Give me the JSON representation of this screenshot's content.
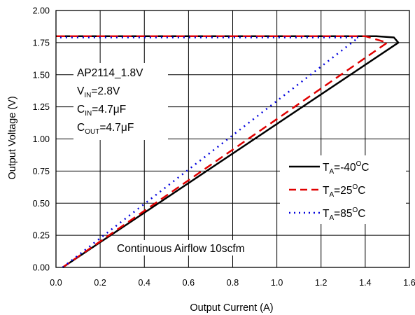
{
  "chart_data": {
    "type": "line",
    "xlabel": "Output Current (A)",
    "ylabel": "Output Voltage (V)",
    "xlim": [
      0,
      1.6
    ],
    "ylim": [
      0,
      2.0
    ],
    "x_ticks": [
      "0.0",
      "0.2",
      "0.4",
      "0.6",
      "0.8",
      "1.0",
      "1.2",
      "1.4",
      "1.6"
    ],
    "y_ticks": [
      "0.00",
      "0.25",
      "0.50",
      "0.75",
      "1.00",
      "1.25",
      "1.50",
      "1.75",
      "2.00"
    ],
    "x_tick_values": [
      0,
      0.2,
      0.4,
      0.6,
      0.8,
      1.0,
      1.2,
      1.4,
      1.6
    ],
    "y_tick_values": [
      0,
      0.25,
      0.5,
      0.75,
      1.0,
      1.25,
      1.5,
      1.75,
      2.0
    ],
    "grid": true,
    "annotations": {
      "device": "AP2114_1.8V",
      "vin": {
        "main": "V",
        "sub": "IN",
        "value": "=2.8V"
      },
      "cin": {
        "main": "C",
        "sub": "IN",
        "value": "=4.7μF"
      },
      "cout": {
        "main": "C",
        "sub": "OUT",
        "value": "=4.7μF"
      },
      "airflow": "Continuous Airflow 10scfm"
    },
    "legend_position": "right",
    "series": [
      {
        "name": "TA=-40OC",
        "label_main": "T",
        "label_sub": "A",
        "label_value": "=-40",
        "label_sup": "O",
        "label_unit": "C",
        "color": "#000000",
        "style": "solid",
        "x": [
          0.03,
          1.55,
          1.53,
          1.45,
          0.0
        ],
        "y": [
          0.0,
          1.75,
          1.79,
          1.8,
          1.8
        ]
      },
      {
        "name": "TA=25OC",
        "label_main": "T",
        "label_sub": "A",
        "label_value": "=25",
        "label_sup": "O",
        "label_unit": "C",
        "color": "#e00000",
        "style": "dashed",
        "x": [
          0.03,
          1.5,
          1.4,
          0.0
        ],
        "y": [
          0.0,
          1.75,
          1.8,
          1.8
        ]
      },
      {
        "name": "TA=85OC",
        "label_main": "T",
        "label_sub": "A",
        "label_value": "=85",
        "label_sup": "O",
        "label_unit": "C",
        "color": "#0000dd",
        "style": "dotted",
        "x": [
          0.03,
          1.37,
          0.0
        ],
        "y": [
          0.0,
          1.79,
          1.79
        ]
      }
    ]
  }
}
